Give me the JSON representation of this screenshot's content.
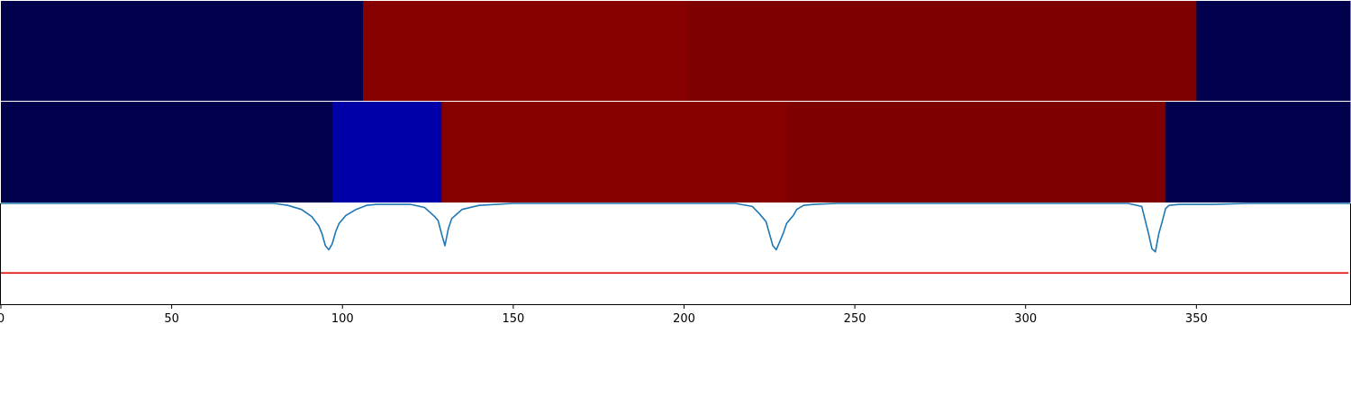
{
  "chart_data": [
    {
      "type": "heatmap",
      "xlim": [
        0,
        395
      ],
      "segments": [
        {
          "start": 0,
          "end": 106,
          "color": "#00004c"
        },
        {
          "start": 106,
          "end": 201,
          "color": "#870000"
        },
        {
          "start": 201,
          "end": 350,
          "color": "#7f0000"
        },
        {
          "start": 350,
          "end": 395,
          "color": "#00004c"
        }
      ]
    },
    {
      "type": "heatmap",
      "xlim": [
        0,
        395
      ],
      "segments": [
        {
          "start": 0,
          "end": 97,
          "color": "#00004c"
        },
        {
          "start": 97,
          "end": 129,
          "color": "#0000a8"
        },
        {
          "start": 129,
          "end": 230,
          "color": "#870000"
        },
        {
          "start": 230,
          "end": 341,
          "color": "#7f0000"
        },
        {
          "start": 341,
          "end": 395,
          "color": "#00004c"
        }
      ]
    },
    {
      "type": "line",
      "xlim": [
        0,
        395
      ],
      "ylim": [
        -1.0,
        0.0
      ],
      "xticks": [
        0,
        50,
        100,
        150,
        200,
        250,
        300,
        350
      ],
      "xtick_labels": [
        "0",
        "50",
        "100",
        "150",
        "200",
        "250",
        "300",
        "350"
      ],
      "threshold": {
        "value": -0.69,
        "color": "#e00000"
      },
      "series": [
        {
          "color": "#1f77b4",
          "x": [
            0,
            80,
            84,
            88,
            91,
            93,
            94,
            95,
            96,
            97,
            98,
            99,
            101,
            104,
            107,
            110,
            113,
            116,
            120,
            124,
            125,
            126,
            127,
            128,
            129,
            130,
            131,
            132,
            135,
            140,
            150,
            200,
            215,
            220,
            222,
            224,
            225,
            226,
            227,
            228,
            229,
            230,
            231,
            232,
            233,
            235,
            238,
            245,
            300,
            330,
            334,
            336,
            337,
            338,
            339,
            340,
            341,
            342,
            345,
            355,
            365,
            395
          ],
          "y": [
            0,
            0,
            -0.02,
            -0.06,
            -0.13,
            -0.22,
            -0.3,
            -0.42,
            -0.46,
            -0.4,
            -0.28,
            -0.2,
            -0.12,
            -0.06,
            -0.02,
            -0.01,
            -0.01,
            -0.01,
            -0.01,
            -0.04,
            -0.07,
            -0.1,
            -0.13,
            -0.17,
            -0.3,
            -0.42,
            -0.25,
            -0.15,
            -0.06,
            -0.02,
            0,
            0,
            0,
            -0.03,
            -0.1,
            -0.18,
            -0.3,
            -0.42,
            -0.46,
            -0.38,
            -0.3,
            -0.2,
            -0.16,
            -0.12,
            -0.06,
            -0.02,
            -0.01,
            0,
            0,
            0,
            -0.03,
            -0.3,
            -0.45,
            -0.48,
            -0.3,
            -0.18,
            -0.05,
            -0.02,
            -0.01,
            -0.01,
            0,
            0
          ]
        }
      ]
    }
  ]
}
